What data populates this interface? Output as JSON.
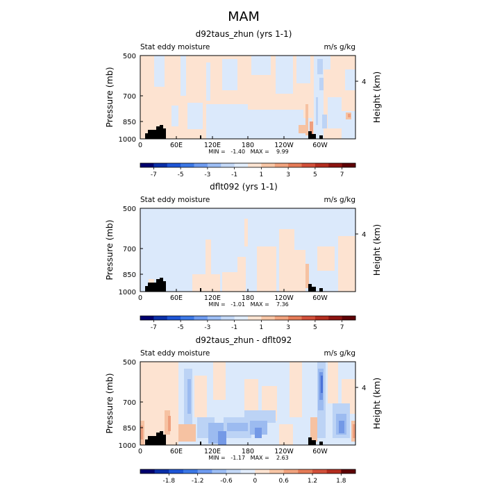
{
  "figure_title": "MAM",
  "chart_data": [
    {
      "type": "heatmap",
      "title": "d92taus_zhun (yrs 1-1)",
      "left_label": "Stat eddy moisture",
      "right_label": "m/s g/kg",
      "ylabel": "Pressure (mb)",
      "ylabel_right": "Height (km)",
      "yticks": [
        "500",
        "700",
        "850",
        "1000"
      ],
      "right_ticks": [
        "4"
      ],
      "xticks": [
        "0",
        "60E",
        "120E",
        "180",
        "120W",
        "60W"
      ],
      "stats": "MIN =   -1.40   MAX =    9.99",
      "colorbar": {
        "labels": [
          "-7",
          "-5",
          "-3",
          "-1",
          "1",
          "3",
          "5",
          "7"
        ],
        "colors": [
          "#00006e",
          "#0a2fa8",
          "#1e55d6",
          "#3c78e6",
          "#6e9bf0",
          "#9dbef5",
          "#c4d9f7",
          "#e2edfb",
          "#fde4d2",
          "#f8c6a6",
          "#f1a37e",
          "#e57b57",
          "#d2503a",
          "#b32d1f",
          "#8c1410",
          "#5e0205"
        ]
      }
    },
    {
      "type": "heatmap",
      "title": "dflt092 (yrs 1-1)",
      "left_label": "Stat eddy moisture",
      "right_label": "m/s g/kg",
      "ylabel": "Pressure (mb)",
      "ylabel_right": "Height (km)",
      "yticks": [
        "500",
        "700",
        "850",
        "1000"
      ],
      "right_ticks": [
        "4"
      ],
      "xticks": [
        "0",
        "60E",
        "120E",
        "180",
        "120W",
        "60W"
      ],
      "stats": "MIN =   -1.01   MAX =    7.36",
      "colorbar": {
        "labels": [
          "-7",
          "-5",
          "-3",
          "-1",
          "1",
          "3",
          "5",
          "7"
        ],
        "colors": [
          "#00006e",
          "#0a2fa8",
          "#1e55d6",
          "#3c78e6",
          "#6e9bf0",
          "#9dbef5",
          "#c4d9f7",
          "#e2edfb",
          "#fde4d2",
          "#f8c6a6",
          "#f1a37e",
          "#e57b57",
          "#d2503a",
          "#b32d1f",
          "#8c1410",
          "#5e0205"
        ]
      }
    },
    {
      "type": "heatmap",
      "title": "d92taus_zhun - dflt092",
      "left_label": "Stat eddy moisture",
      "right_label": "m/s g/kg",
      "ylabel": "Pressure (mb)",
      "ylabel_right": "Height (km)",
      "yticks": [
        "500",
        "700",
        "850",
        "1000"
      ],
      "right_ticks": [
        "4"
      ],
      "xticks": [
        "0",
        "60E",
        "120E",
        "180",
        "120W",
        "60W"
      ],
      "stats": "MIN =   -1.17   MAX =    2.63",
      "colorbar": {
        "labels": [
          "-1.8",
          "-1.2",
          "-0.6",
          "0",
          "0.6",
          "1.2",
          "1.8"
        ],
        "colors": [
          "#00006e",
          "#0a2fa8",
          "#1e55d6",
          "#3c78e6",
          "#6e9bf0",
          "#9dbef5",
          "#c4d9f7",
          "#e2edfb",
          "#fde4d2",
          "#f8c6a6",
          "#f1a37e",
          "#e57b57",
          "#d2503a",
          "#b32d1f",
          "#5e0205"
        ]
      }
    }
  ]
}
